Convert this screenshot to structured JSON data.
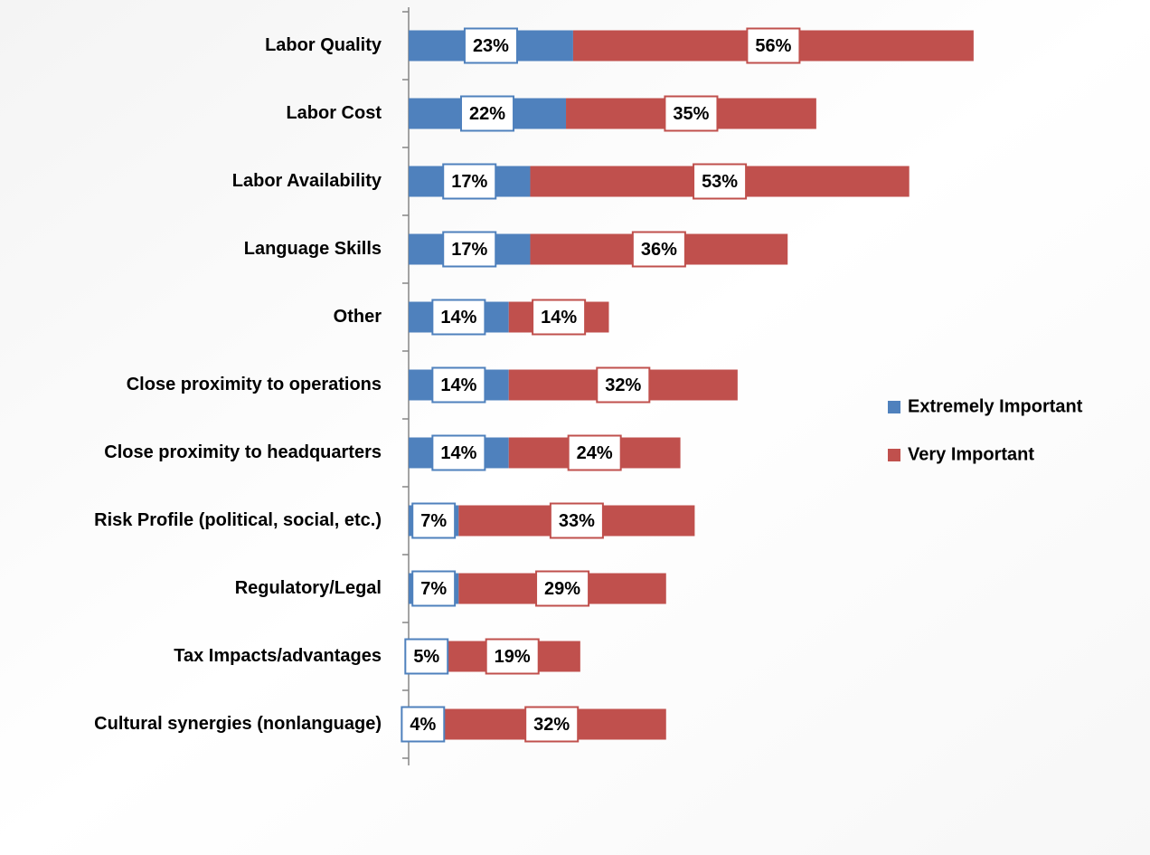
{
  "chart_data": {
    "type": "stacked_bar_horizontal",
    "categories": [
      "Labor Quality",
      "Labor Cost",
      "Labor Availability",
      "Language Skills",
      "Other",
      "Close proximity to operations",
      "Close proximity to headquarters",
      "Risk Profile (political, social, etc.)",
      "Regulatory/Legal",
      "Tax Impacts/advantages",
      "Cultural synergies (nonlanguage)"
    ],
    "series": [
      {
        "name": "Extremely Important",
        "color": "#4f81bd",
        "values": [
          23,
          22,
          17,
          17,
          14,
          14,
          14,
          7,
          7,
          5,
          4
        ],
        "value_labels": [
          "23%",
          "22%",
          "17%",
          "17%",
          "14%",
          "14%",
          "14%",
          "7%",
          "7%",
          "5%",
          "4%"
        ]
      },
      {
        "name": "Very Important",
        "color": "#c0504d",
        "values": [
          56,
          35,
          53,
          36,
          14,
          32,
          24,
          33,
          29,
          19,
          32
        ],
        "value_labels": [
          "56%",
          "35%",
          "53%",
          "36%",
          "14%",
          "32%",
          "24%",
          "33%",
          "29%",
          "19%",
          "32%"
        ]
      }
    ],
    "xlim": [
      0,
      100
    ],
    "legend": "right"
  }
}
